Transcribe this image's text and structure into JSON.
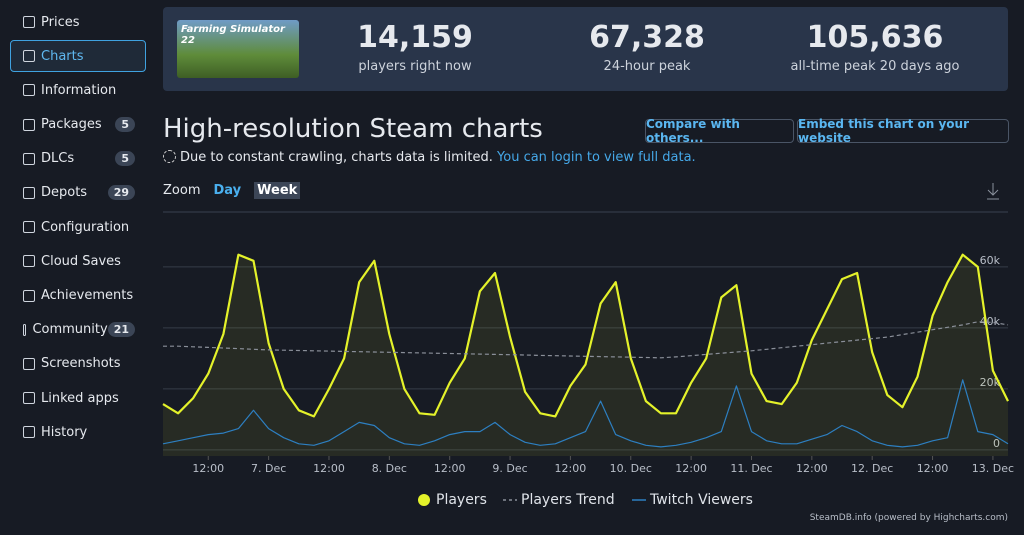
{
  "sidebar": [
    {
      "label": "Prices"
    },
    {
      "label": "Charts"
    },
    {
      "label": "Information"
    },
    {
      "label": "Packages",
      "badge": 5
    },
    {
      "label": "DLCs",
      "badge": 5
    },
    {
      "label": "Depots",
      "badge": 29
    },
    {
      "label": "Configuration"
    },
    {
      "label": "Cloud Saves"
    },
    {
      "label": "Achievements"
    },
    {
      "label": "Community",
      "badge": 21
    },
    {
      "label": "Screenshots"
    },
    {
      "label": "Linked apps"
    },
    {
      "label": "History"
    }
  ],
  "game": {
    "logo": "Farming Simulator 22"
  },
  "stats": [
    {
      "value": "14,159",
      "label": "players right now"
    },
    {
      "value": "67,328",
      "label": "24-hour peak"
    },
    {
      "value": "105,636",
      "label": "all-time peak 20 days ago"
    }
  ],
  "header": {
    "title": "High-resolution Steam charts",
    "notice": "Due to constant crawling, charts data is limited.",
    "link": "You can login to view full data.",
    "buttons": [
      "Compare with others...",
      "Embed this chart on your website"
    ],
    "zoom": {
      "label": "Zoom",
      "options": [
        "Day",
        "Week"
      ]
    }
  },
  "credit": "SteamDB.info (powered by Highcharts.com)",
  "chart_data": {
    "type": "line",
    "categories": [
      null,
      null,
      null,
      "12:00",
      null,
      null,
      null,
      "7. Dec",
      null,
      null,
      null,
      "12:00",
      null,
      null,
      null,
      "8. Dec",
      null,
      null,
      null,
      "12:00",
      null,
      null,
      null,
      "9. Dec",
      null,
      null,
      null,
      "12:00",
      null,
      null,
      null,
      "10. Dec",
      null,
      null,
      null,
      "12:00",
      null,
      null,
      null,
      "11. Dec",
      null,
      null,
      null,
      "12:00",
      null,
      null,
      null,
      "12. Dec",
      null,
      null,
      null,
      "12:00",
      null,
      null,
      null,
      "13. Dec",
      null
    ],
    "series": [
      {
        "name": "Players",
        "color": "#e4f22a",
        "area": true,
        "values": [
          15000,
          12000,
          17000,
          25000,
          38000,
          64000,
          62000,
          35000,
          20000,
          13000,
          11000,
          20000,
          30000,
          55000,
          62000,
          38000,
          20000,
          12000,
          11500,
          22000,
          30000,
          52000,
          58000,
          37000,
          19000,
          12000,
          11000,
          21000,
          28000,
          48000,
          55000,
          30000,
          16000,
          12000,
          12000,
          22000,
          30000,
          50000,
          54000,
          25000,
          16000,
          15000,
          22000,
          36000,
          46000,
          56000,
          58000,
          32000,
          18000,
          14000,
          24000,
          44000,
          55000,
          64000,
          60000,
          26000,
          16000
        ]
      },
      {
        "name": "Players Trend",
        "color": "#8a8f99",
        "dash": true,
        "values": [
          34000,
          34000,
          33800,
          33600,
          33400,
          33200,
          33000,
          32800,
          32700,
          32600,
          32500,
          32400,
          32300,
          32200,
          32100,
          32000,
          31900,
          31800,
          31700,
          31600,
          31500,
          31400,
          31300,
          31200,
          31100,
          31000,
          30900,
          30800,
          30700,
          30600,
          30500,
          30400,
          30300,
          30200,
          30500,
          30900,
          31300,
          31700,
          32100,
          32500,
          33000,
          33500,
          34000,
          34500,
          35000,
          35500,
          36000,
          36500,
          37000,
          37800,
          38600,
          39400,
          40200,
          41000,
          42000,
          41800,
          41000
        ]
      },
      {
        "name": "Twitch Viewers",
        "color": "#2d7fc1",
        "values": [
          2000,
          3000,
          4000,
          5000,
          5500,
          7000,
          13000,
          7000,
          4000,
          2000,
          1500,
          3000,
          6000,
          9000,
          8000,
          4000,
          2000,
          1500,
          3000,
          5000,
          6000,
          6000,
          9000,
          5000,
          2500,
          1500,
          2000,
          4000,
          6000,
          16000,
          5000,
          3000,
          1500,
          1000,
          1500,
          2500,
          4000,
          6000,
          21000,
          6000,
          3000,
          2000,
          2000,
          3500,
          5000,
          8000,
          6000,
          3000,
          1500,
          1000,
          1500,
          3000,
          4000,
          23000,
          6000,
          5000,
          2000
        ]
      }
    ],
    "ylim": [
      -2000,
      78000
    ],
    "yticks": [
      0,
      {
        "value": 20000,
        "label": "20k"
      },
      {
        "value": 40000,
        "label": "40k"
      },
      {
        "value": 60000,
        "label": "60k"
      }
    ],
    "grid": true,
    "legend": "bottom"
  }
}
